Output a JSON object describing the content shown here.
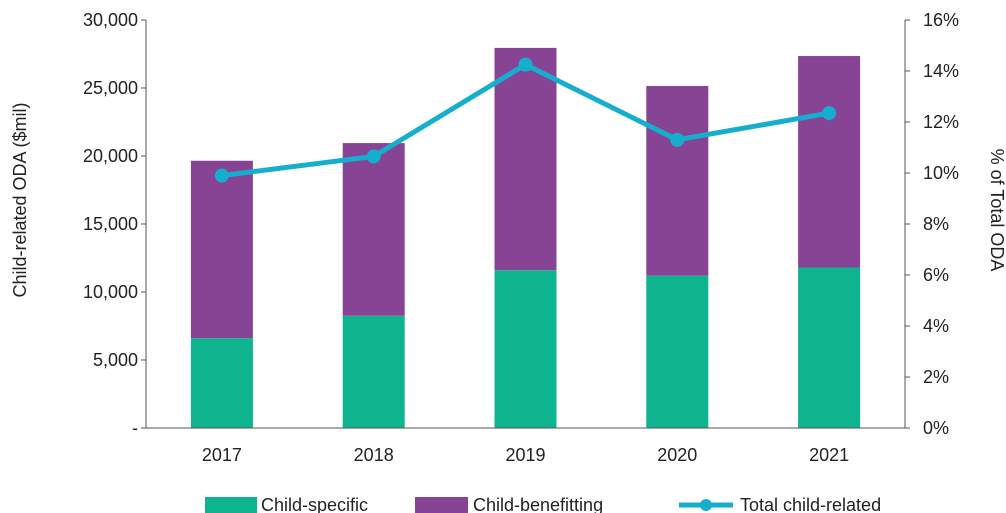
{
  "chart_data": {
    "type": "bar",
    "stacked": true,
    "categories": [
      "2017",
      "2018",
      "2019",
      "2020",
      "2021"
    ],
    "series": [
      {
        "name": "Child-specific",
        "kind": "bar",
        "axis": "left",
        "color": "#0db48e",
        "values": [
          6600,
          8250,
          11600,
          11200,
          11800
        ]
      },
      {
        "name": "Child-benefitting",
        "kind": "bar",
        "axis": "left",
        "color": "#884494",
        "values": [
          13050,
          12700,
          16350,
          13950,
          15550
        ]
      },
      {
        "name": "Total child-related",
        "kind": "line",
        "axis": "right",
        "color": "#16aecf",
        "values": [
          9.9,
          10.65,
          14.25,
          11.3,
          12.35
        ]
      }
    ],
    "ylabel": "Child-related ODA ($mil)",
    "y2label": "% of Total ODA",
    "ylim": [
      0,
      30000
    ],
    "y2lim": [
      0,
      16
    ],
    "yticks": [
      "-",
      "5,000",
      "10,000",
      "15,000",
      "20,000",
      "25,000",
      "30,000"
    ],
    "y2ticks": [
      "0%",
      "2%",
      "4%",
      "6%",
      "8%",
      "10%",
      "12%",
      "14%",
      "16%"
    ],
    "legend_position": "bottom",
    "grid": false
  }
}
